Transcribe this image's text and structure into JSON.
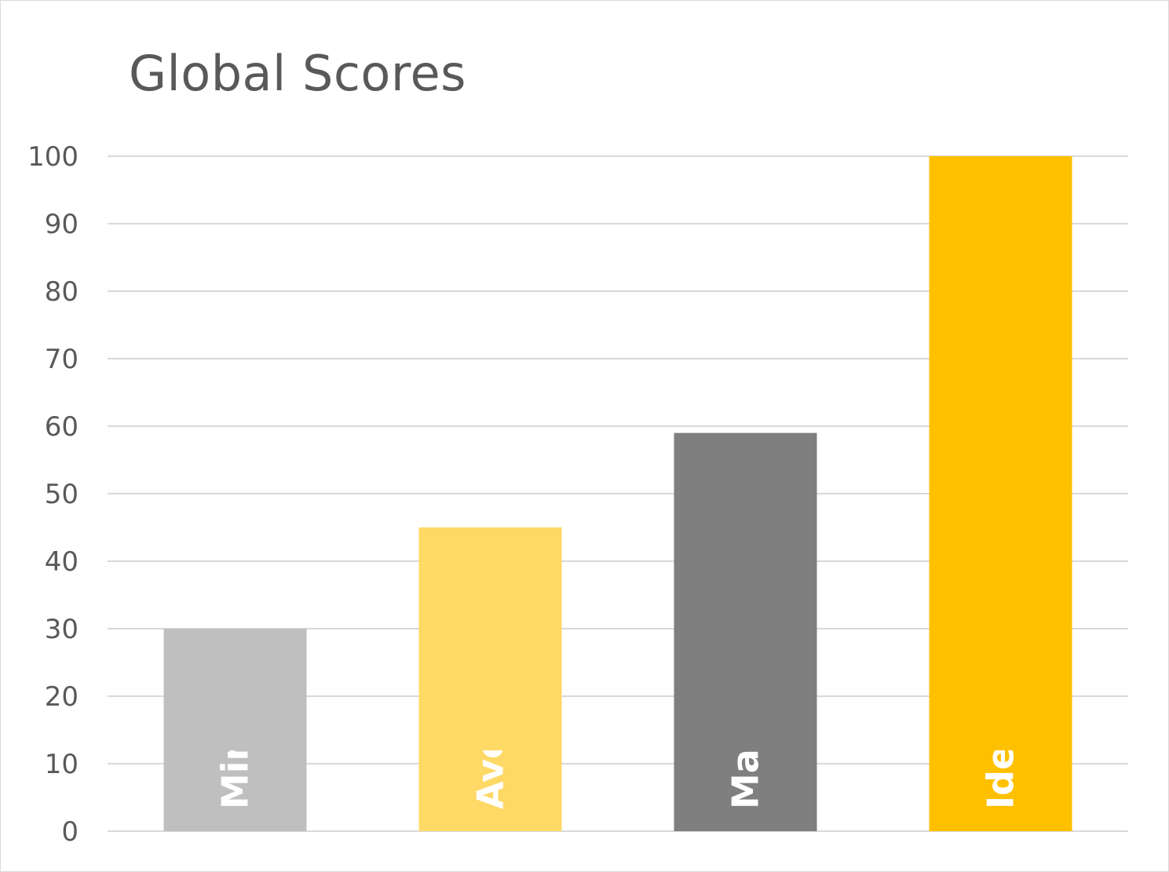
{
  "chart_data": {
    "type": "bar",
    "title": "Global Scores",
    "categories": [
      "Minimum",
      "Average",
      "Maximum",
      "Ideal"
    ],
    "values": [
      30,
      45,
      59,
      100
    ],
    "colors": [
      "#bfbfbf",
      "#ffd966",
      "#7f7f7f",
      "#ffc000"
    ],
    "ylim": [
      0,
      100
    ],
    "yticks": [
      0,
      10,
      20,
      30,
      40,
      50,
      60,
      70,
      80,
      90,
      100
    ],
    "grid": true,
    "legend": "none",
    "data_labels": "category names inside bars, rotated vertical"
  }
}
